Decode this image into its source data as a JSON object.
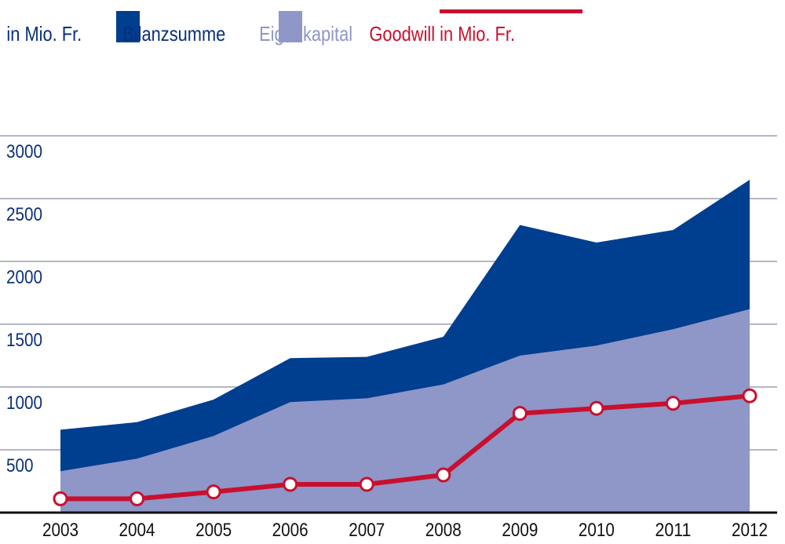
{
  "colors": {
    "bilanzsumme": "#003e8f",
    "eigenkapital": "#8f96c8",
    "goodwill": "#c8102e",
    "grid": "#9aa0b2",
    "axis": "#111111",
    "text_blue": "#0a2f7a"
  },
  "legend": {
    "unit_label": "in Mio. Fr.",
    "bilanzsumme_label": "Bilanzsumme",
    "eigenkapital_label": "Eigenkapital",
    "goodwill_label": "Goodwill in Mio. Fr."
  },
  "chart_data": {
    "type": "area",
    "title": "",
    "ylabel": "in Mio. Fr.",
    "ylim": [
      0,
      3000
    ],
    "grid": true,
    "legend_position": "top",
    "categories": [
      "2003",
      "2004",
      "2005",
      "2006",
      "2007",
      "2008",
      "2009",
      "2010",
      "2011",
      "2012"
    ],
    "y_ticks": [
      "500",
      "1000",
      "1500",
      "2000",
      "2500",
      "3000"
    ],
    "series": [
      {
        "name": "Bilanzsumme",
        "kind": "area",
        "values": [
          660,
          720,
          900,
          1230,
          1240,
          1400,
          2290,
          2150,
          2250,
          2650
        ]
      },
      {
        "name": "Eigenkapital",
        "kind": "area",
        "values": [
          330,
          430,
          610,
          880,
          910,
          1020,
          1250,
          1330,
          1460,
          1620
        ]
      },
      {
        "name": "Goodwill in Mio. Fr.",
        "kind": "line",
        "values": [
          110,
          110,
          165,
          225,
          225,
          300,
          790,
          830,
          870,
          930
        ]
      }
    ]
  }
}
